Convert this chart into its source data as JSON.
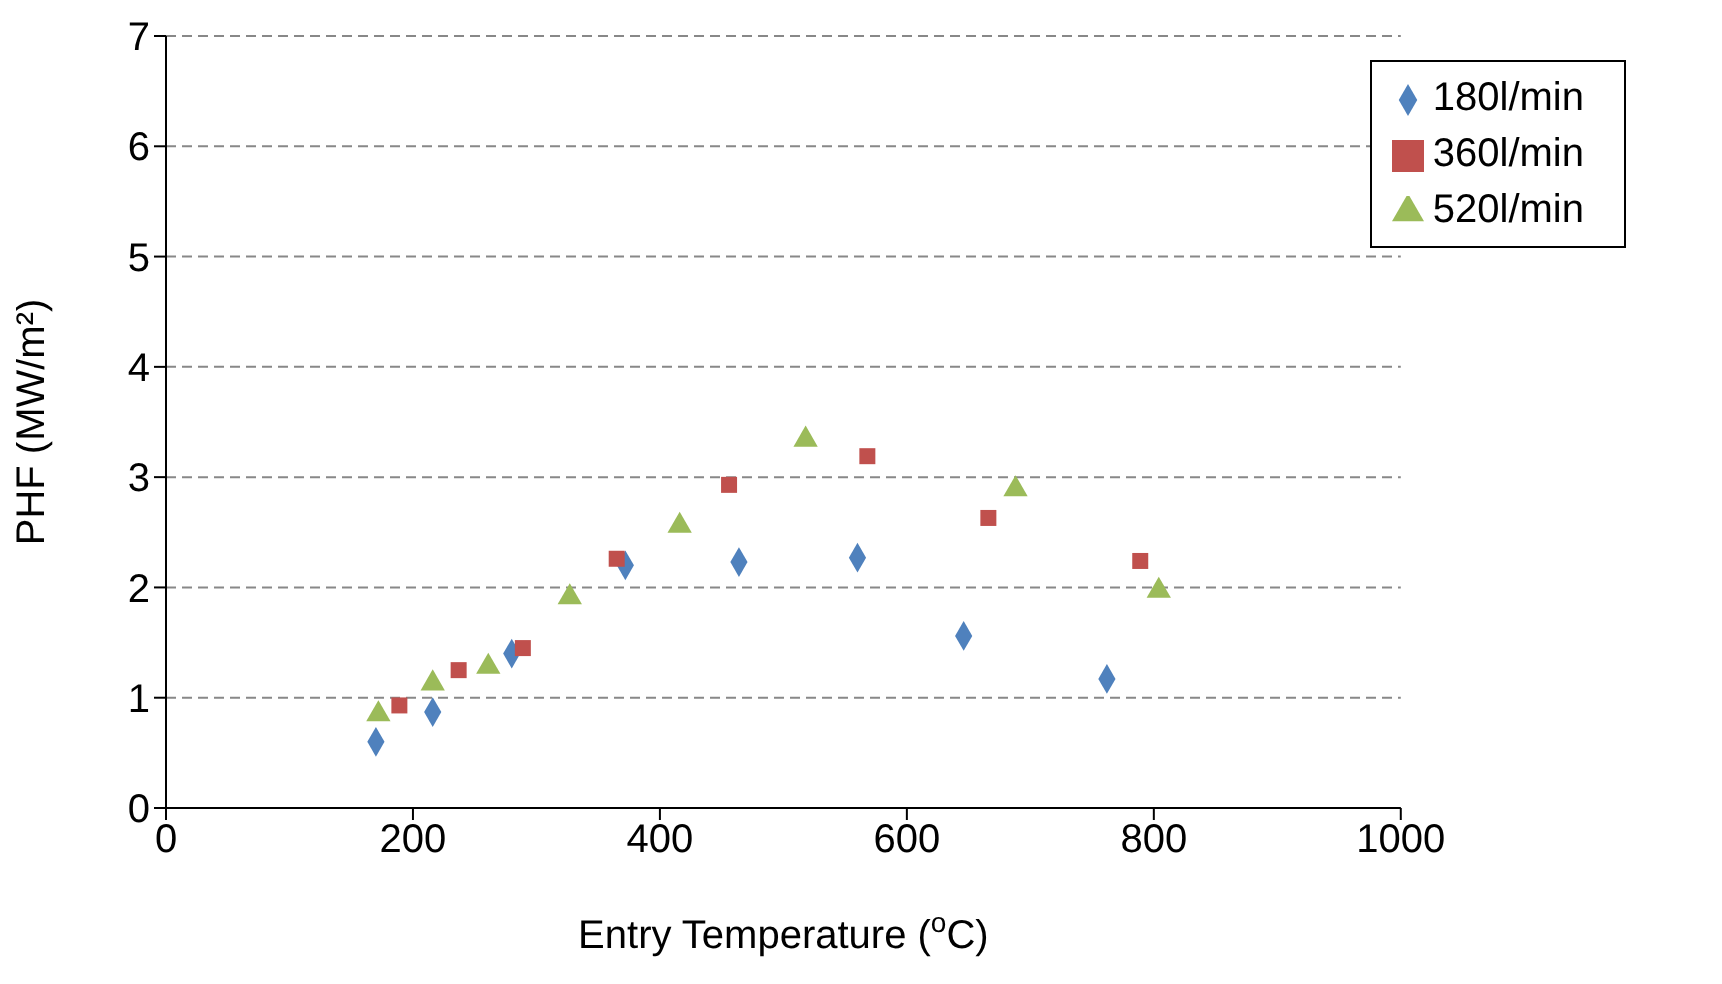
{
  "chart_data": {
    "type": "scatter",
    "xlabel": "Entry Temperature ($^{o}$C)",
    "ylabel": "PHF (MW/m²)",
    "xlim": [
      0,
      1000
    ],
    "xticks": [
      0,
      200,
      400,
      600,
      800,
      1000
    ],
    "ylim": [
      0,
      7
    ],
    "yticks": [
      0,
      1,
      2,
      3,
      4,
      5,
      6,
      7
    ],
    "grid": "y",
    "legend": "top right",
    "series": [
      {
        "name": "180l/min",
        "color": "#4f81bd",
        "marker": "diamond",
        "x": [
          170,
          216,
          280,
          372,
          464,
          560,
          646,
          762
        ],
        "values": [
          0.6,
          0.87,
          1.4,
          2.2,
          2.23,
          2.27,
          1.56,
          1.17
        ]
      },
      {
        "name": "360l/min",
        "color": "#c0504d",
        "marker": "square",
        "x": [
          189,
          237,
          289,
          365,
          456,
          568,
          666,
          789
        ],
        "values": [
          0.93,
          1.25,
          1.45,
          2.26,
          2.93,
          3.19,
          2.63,
          2.24
        ]
      },
      {
        "name": "520l/min",
        "color": "#9bbb59",
        "marker": "triangle",
        "x": [
          172,
          216,
          261,
          327,
          416,
          518,
          688,
          804
        ],
        "values": [
          0.85,
          1.13,
          1.28,
          1.91,
          2.56,
          3.34,
          2.89,
          1.97
        ]
      }
    ]
  }
}
